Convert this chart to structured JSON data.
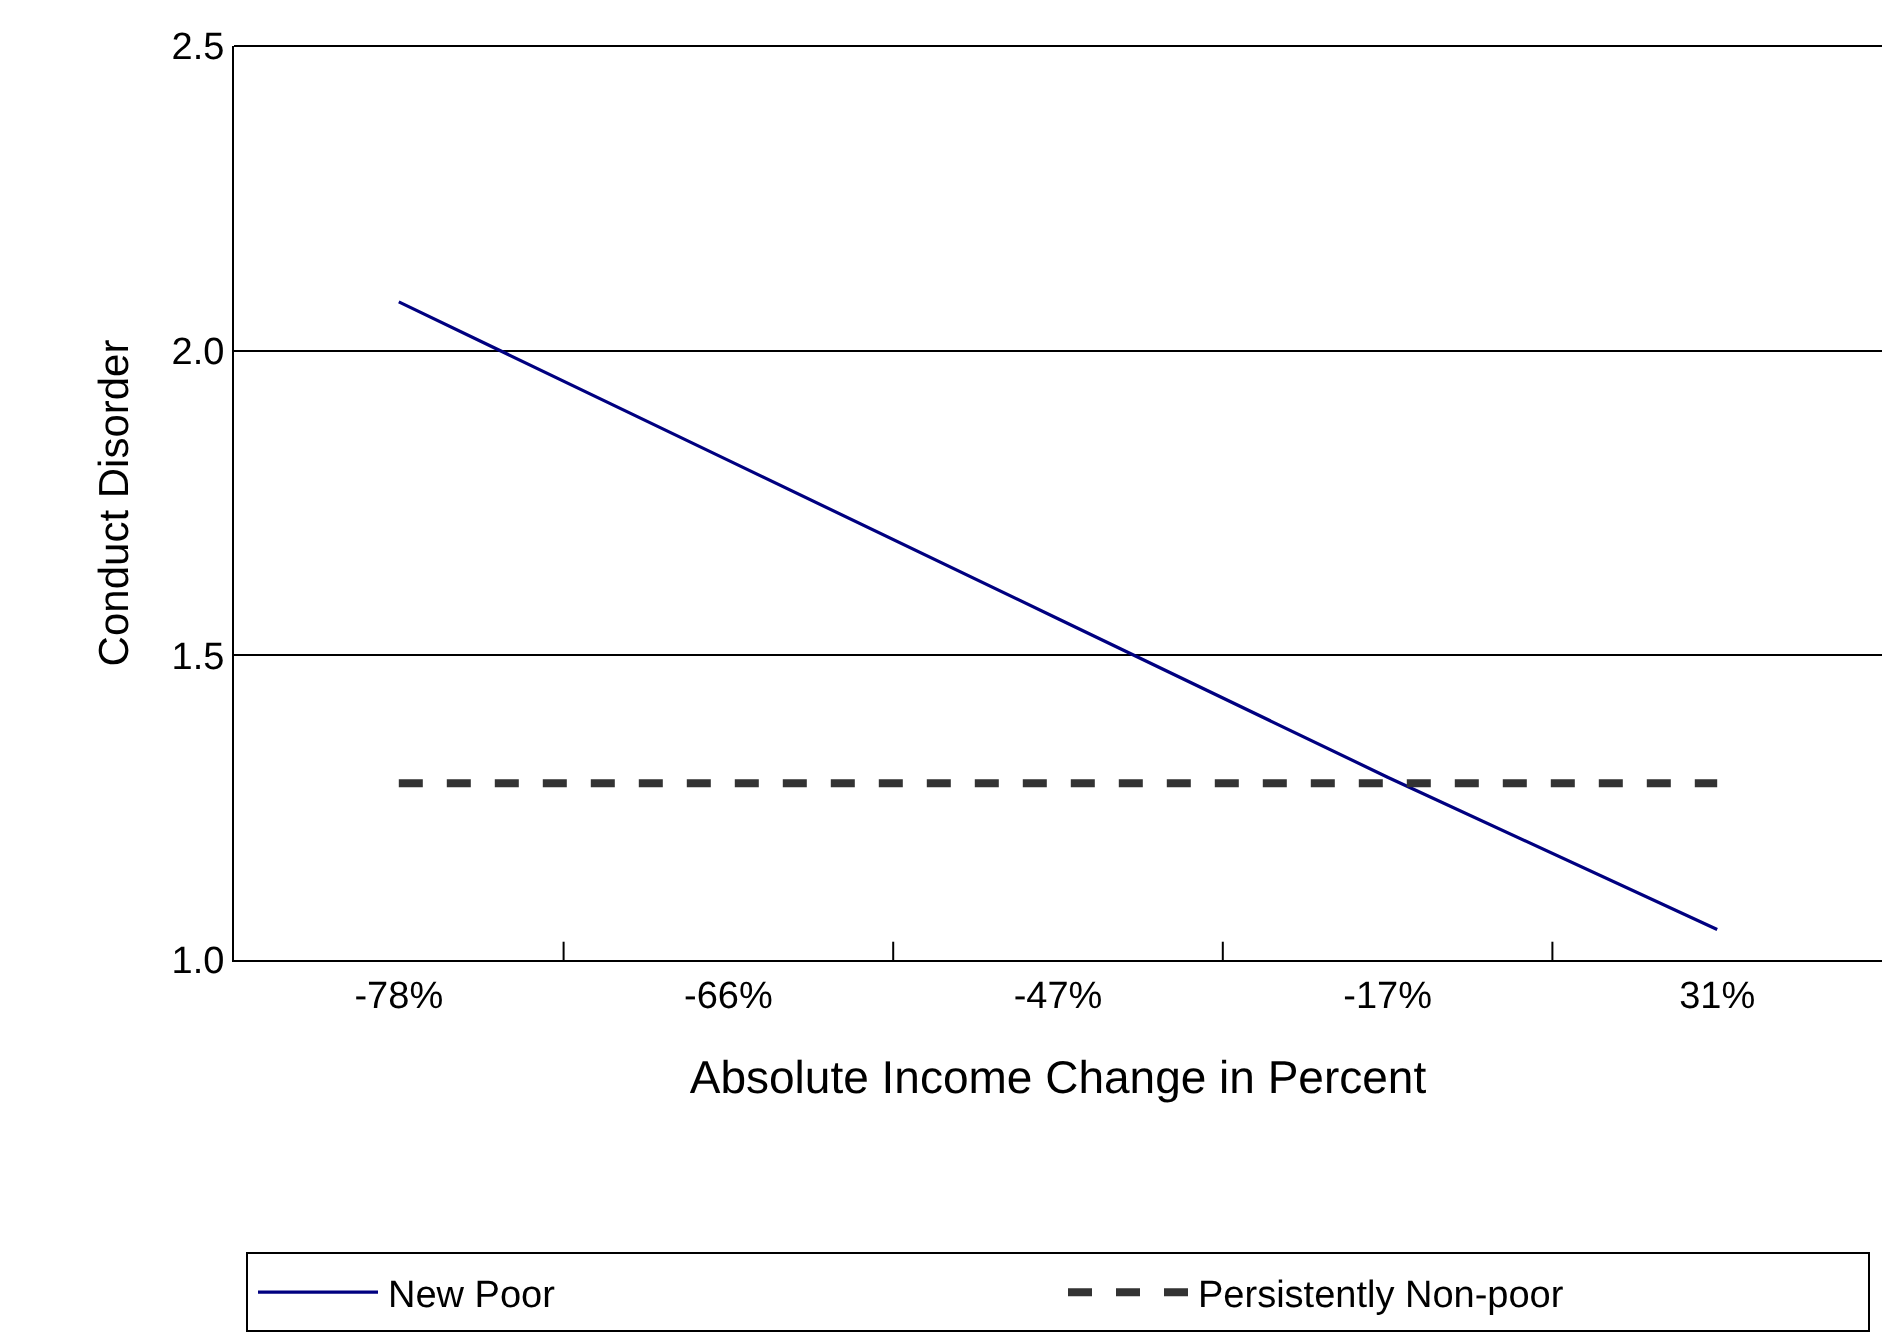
{
  "chart_data": {
    "type": "line",
    "xlabel": "Absolute Income Change in Percent",
    "ylabel": "Conduct Disorder",
    "categories": [
      "-78%",
      "-66%",
      "-47%",
      "-17%",
      "31%"
    ],
    "series": [
      {
        "name": "New Poor",
        "color": "#000080",
        "line_style": "solid",
        "values": [
          2.08,
          1.82,
          1.56,
          1.3,
          1.05
        ]
      },
      {
        "name": "Persistently Non-poor",
        "color": "#333333",
        "line_style": "dashed",
        "values": [
          1.29,
          1.29,
          1.29,
          1.29,
          1.29
        ]
      }
    ],
    "ylim": [
      1.0,
      2.5
    ],
    "yticks": [
      {
        "value": 1.0,
        "label": "1.0"
      },
      {
        "value": 1.5,
        "label": "1.5"
      },
      {
        "value": 2.0,
        "label": "2.0"
      },
      {
        "value": 2.5,
        "label": "2.5"
      }
    ],
    "grid": "y",
    "legend": "bottom",
    "marker": "none"
  }
}
